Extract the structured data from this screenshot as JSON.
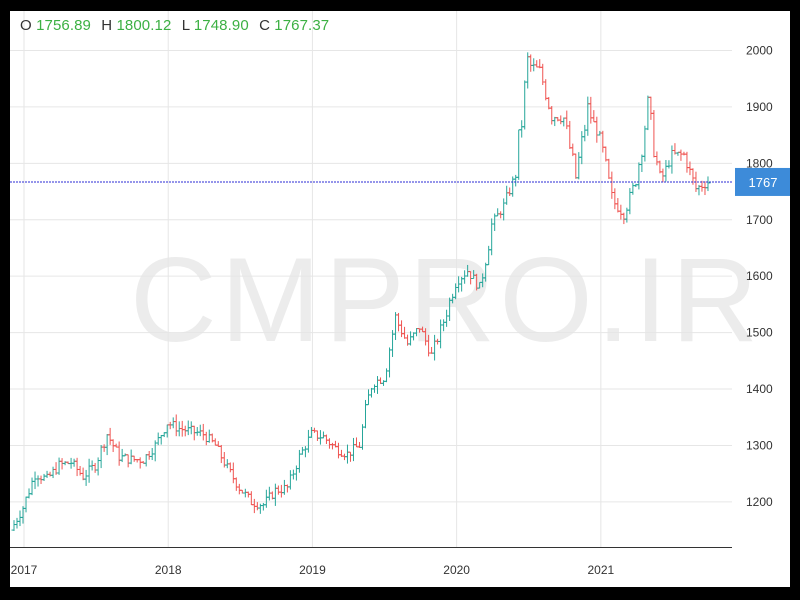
{
  "ohlc_readout": {
    "o_label": "O",
    "o_value": "1756.89",
    "h_label": "H",
    "h_value": "1800.12",
    "l_label": "L",
    "l_value": "1748.90",
    "c_label": "C",
    "c_value": "1767.37"
  },
  "watermark": "CMPRO.IR",
  "price_label": "1767",
  "colors": {
    "up": "#26a69a",
    "down": "#ef5350",
    "price_line": "#2b2bd4",
    "price_tag": "#3d8bd9",
    "readout": "#3cb043"
  },
  "chart_data": {
    "type": "ohlc",
    "title": "",
    "xlabel": "",
    "ylabel": "",
    "x_ticks": [
      "2017",
      "2018",
      "2019",
      "2020",
      "2021"
    ],
    "y_ticks": [
      1200,
      1300,
      1400,
      1500,
      1600,
      1700,
      1800,
      1900,
      2000
    ],
    "xlim": [
      "2016-12",
      "2021-10"
    ],
    "ylim": [
      1120,
      2070
    ],
    "grid": true,
    "current_price": 1767,
    "series": [
      {
        "values": [
          {
            "x": "2016-12",
            "y": 1150
          },
          {
            "x": "2017-01",
            "y": 1190
          },
          {
            "x": "2017-02",
            "y": 1250
          },
          {
            "x": "2017-03",
            "y": 1240
          },
          {
            "x": "2017-04",
            "y": 1265
          },
          {
            "x": "2017-05",
            "y": 1270
          },
          {
            "x": "2017-06",
            "y": 1245
          },
          {
            "x": "2017-07",
            "y": 1265
          },
          {
            "x": "2017-08",
            "y": 1320
          },
          {
            "x": "2017-09",
            "y": 1280
          },
          {
            "x": "2017-10",
            "y": 1275
          },
          {
            "x": "2017-11",
            "y": 1275
          },
          {
            "x": "2017-12",
            "y": 1300
          },
          {
            "x": "2018-01",
            "y": 1340
          },
          {
            "x": "2018-02",
            "y": 1330
          },
          {
            "x": "2018-03",
            "y": 1325
          },
          {
            "x": "2018-04",
            "y": 1320
          },
          {
            "x": "2018-05",
            "y": 1300
          },
          {
            "x": "2018-06",
            "y": 1260
          },
          {
            "x": "2018-07",
            "y": 1225
          },
          {
            "x": "2018-08",
            "y": 1200
          },
          {
            "x": "2018-09",
            "y": 1195
          },
          {
            "x": "2018-10",
            "y": 1220
          },
          {
            "x": "2018-11",
            "y": 1225
          },
          {
            "x": "2018-12",
            "y": 1280
          },
          {
            "x": "2019-01",
            "y": 1320
          },
          {
            "x": "2019-02",
            "y": 1315
          },
          {
            "x": "2019-03",
            "y": 1295
          },
          {
            "x": "2019-04",
            "y": 1285
          },
          {
            "x": "2019-05",
            "y": 1300
          },
          {
            "x": "2019-06",
            "y": 1410
          },
          {
            "x": "2019-07",
            "y": 1420
          },
          {
            "x": "2019-08",
            "y": 1525
          },
          {
            "x": "2019-09",
            "y": 1480
          },
          {
            "x": "2019-10",
            "y": 1510
          },
          {
            "x": "2019-11",
            "y": 1460
          },
          {
            "x": "2019-12",
            "y": 1520
          },
          {
            "x": "2020-01",
            "y": 1590
          },
          {
            "x": "2020-02",
            "y": 1610
          },
          {
            "x": "2020-03",
            "y": 1580
          },
          {
            "x": "2020-04",
            "y": 1690
          },
          {
            "x": "2020-05",
            "y": 1725
          },
          {
            "x": "2020-06",
            "y": 1780
          },
          {
            "x": "2020-07",
            "y": 1975
          },
          {
            "x": "2020-08",
            "y": 1965
          },
          {
            "x": "2020-09",
            "y": 1885
          },
          {
            "x": "2020-10",
            "y": 1880
          },
          {
            "x": "2020-11",
            "y": 1775
          },
          {
            "x": "2020-12",
            "y": 1895
          },
          {
            "x": "2021-01",
            "y": 1845
          },
          {
            "x": "2021-02",
            "y": 1735
          },
          {
            "x": "2021-03",
            "y": 1710
          },
          {
            "x": "2021-04",
            "y": 1770
          },
          {
            "x": "2021-05",
            "y": 1900
          },
          {
            "x": "2021-06",
            "y": 1765
          },
          {
            "x": "2021-07",
            "y": 1815
          },
          {
            "x": "2021-08",
            "y": 1815
          },
          {
            "x": "2021-09",
            "y": 1755
          },
          {
            "x": "2021-10",
            "y": 1767
          }
        ]
      }
    ]
  }
}
